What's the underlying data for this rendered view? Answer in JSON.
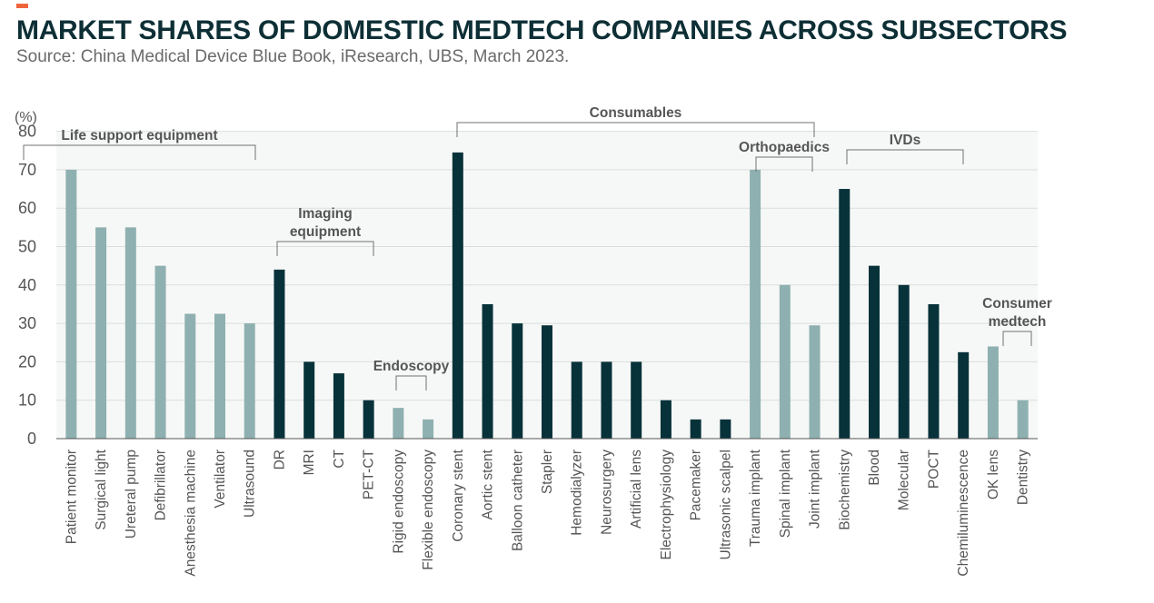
{
  "title": "MARKET SHARES OF DOMESTIC MEDTECH COMPANIES ACROSS SUBSECTORS",
  "subtitle": "Source: China Medical Device Blue Book, iResearch, UBS, March 2023.",
  "colors": {
    "light": "#8fb0b0",
    "dark": "#08323a",
    "accent": "#f0643c",
    "plot_bg": "#f6f8f7",
    "grid": "#d9dedc"
  },
  "chart_data": {
    "type": "bar",
    "unit_label": "(%)",
    "ylim": [
      0,
      80
    ],
    "yticks": [
      0,
      10,
      20,
      30,
      40,
      50,
      60,
      70,
      80
    ],
    "grid": true,
    "categories": [
      "Patient monitor",
      "Surgical light",
      "Ureteral pump",
      "Defibrillator",
      "Anesthesia machine",
      "Ventilator",
      "Ultrasound",
      "DR",
      "MRI",
      "CT",
      "PET-CT",
      "Rigid endoscopy",
      "Flexible endoscopy",
      "Coronary stent",
      "Aortic stent",
      "Balloon catheter",
      "Stapler",
      "Hemodialyzer",
      "Neurosurgery",
      "Artificial lens",
      "Electrophysiology",
      "Pacemaker",
      "Ultrasonic scalpel",
      "Trauma implant",
      "Spinal implant",
      "Joint implant",
      "Biochemistry",
      "Blood",
      "Molecular",
      "POCT",
      "Chemiluminescence",
      "OK lens",
      "Dentistry"
    ],
    "values": [
      70,
      55,
      55,
      45,
      32.5,
      32.5,
      30,
      44,
      20,
      17,
      10,
      8,
      5,
      74.5,
      35,
      30,
      29.5,
      20,
      20,
      20,
      10,
      5,
      5,
      70,
      40,
      29.5,
      65,
      45,
      40,
      35,
      22.5,
      24,
      10
    ],
    "bar_tones": [
      "light",
      "light",
      "light",
      "light",
      "light",
      "light",
      "light",
      "dark",
      "dark",
      "dark",
      "dark",
      "light",
      "light",
      "dark",
      "dark",
      "dark",
      "dark",
      "dark",
      "dark",
      "dark",
      "dark",
      "dark",
      "dark",
      "light",
      "light",
      "light",
      "dark",
      "dark",
      "dark",
      "dark",
      "dark",
      "light",
      "light"
    ],
    "groups": [
      {
        "lines": [
          "Life support equipment"
        ],
        "first": 0,
        "last": 6
      },
      {
        "lines": [
          "Imaging",
          "equipment"
        ],
        "first": 7,
        "last": 10
      },
      {
        "lines": [
          "Endoscopy"
        ],
        "first": 11,
        "last": 12
      },
      {
        "lines": [
          "Consumables"
        ],
        "first": 13,
        "last": 25
      },
      {
        "lines": [
          "Orthopaedics"
        ],
        "first": 23,
        "last": 25
      },
      {
        "lines": [
          "IVDs"
        ],
        "first": 26,
        "last": 30
      },
      {
        "lines": [
          "Consumer",
          "medtech"
        ],
        "first": 31,
        "last": 32
      }
    ]
  }
}
